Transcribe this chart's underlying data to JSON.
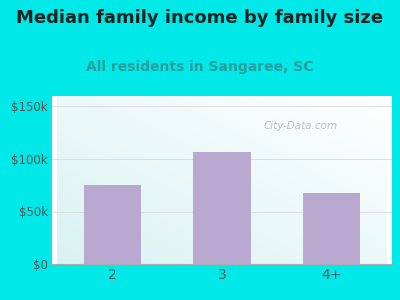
{
  "title": "Median family income by family size",
  "subtitle": "All residents in Sangaree, SC",
  "categories": [
    "2",
    "3",
    "4+"
  ],
  "values": [
    75000,
    107000,
    68000
  ],
  "bar_color": "#b9a8d0",
  "title_color": "#222222",
  "subtitle_color": "#2a9d9d",
  "background_color": "#00e8e8",
  "plot_bg_color_tl": "#d8edd8",
  "plot_bg_color_br": "#f8ffff",
  "yticks": [
    0,
    50000,
    100000,
    150000
  ],
  "ytick_labels": [
    "$0",
    "$50k",
    "$100k",
    "$150k"
  ],
  "ylim": [
    0,
    160000
  ],
  "watermark": "City-Data.com",
  "title_fontsize": 13,
  "subtitle_fontsize": 10,
  "tick_color": "#555555",
  "grid_color": "#dddddd"
}
